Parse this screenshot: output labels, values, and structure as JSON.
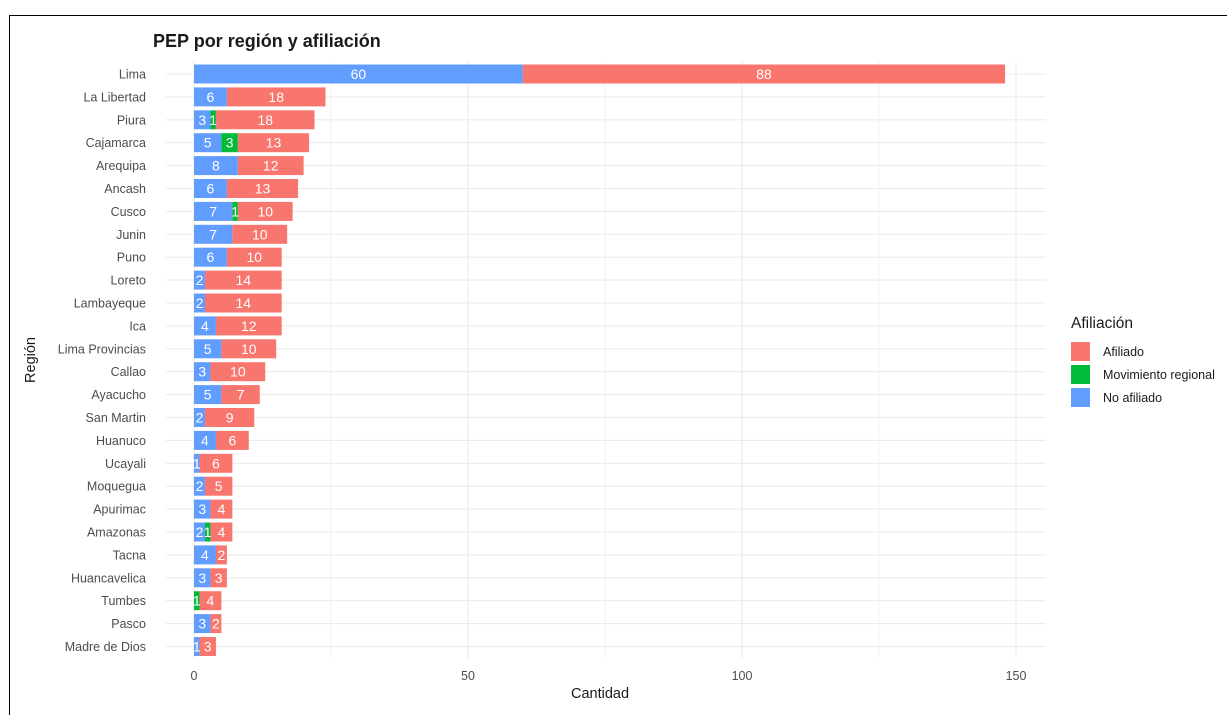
{
  "chart_data": {
    "type": "bar",
    "orientation": "horizontal",
    "stacked": true,
    "title": "PEP por región y afiliación",
    "xlabel": "Cantidad",
    "ylabel": "Región",
    "xlim": [
      0,
      155
    ],
    "xticks": [
      0,
      50,
      100,
      150
    ],
    "grid": true,
    "legend_position": "right",
    "legend_title": "Afiliación",
    "legend": [
      {
        "name": "Afiliado",
        "color": "#F8766D"
      },
      {
        "name": "Movimiento regional",
        "color": "#00BA38"
      },
      {
        "name": "No afiliado",
        "color": "#619CFF"
      }
    ],
    "categories": [
      "Lima",
      "La Libertad",
      "Piura",
      "Cajamarca",
      "Arequipa",
      "Ancash",
      "Cusco",
      "Junin",
      "Puno",
      "Loreto",
      "Lambayeque",
      "Ica",
      "Lima Provincias",
      "Callao",
      "Ayacucho",
      "San Martin",
      "Huanuco",
      "Ucayali",
      "Moquegua",
      "Apurimac",
      "Amazonas",
      "Tacna",
      "Huancavelica",
      "Tumbes",
      "Pasco",
      "Madre de Dios"
    ],
    "series": [
      {
        "name": "No afiliado",
        "color": "#619CFF",
        "values": [
          60,
          6,
          3,
          5,
          8,
          6,
          7,
          7,
          6,
          2,
          2,
          4,
          5,
          3,
          5,
          2,
          4,
          1,
          2,
          3,
          2,
          4,
          3,
          0,
          3,
          1
        ]
      },
      {
        "name": "Movimiento regional",
        "color": "#00BA38",
        "values": [
          0,
          0,
          1,
          3,
          0,
          0,
          1,
          0,
          0,
          0,
          0,
          0,
          0,
          0,
          0,
          0,
          0,
          0,
          0,
          0,
          1,
          0,
          0,
          1,
          0,
          0
        ]
      },
      {
        "name": "Afiliado",
        "color": "#F8766D",
        "values": [
          88,
          18,
          18,
          13,
          12,
          13,
          10,
          10,
          10,
          14,
          14,
          12,
          10,
          10,
          7,
          9,
          6,
          6,
          5,
          4,
          4,
          2,
          3,
          4,
          2,
          3
        ]
      }
    ]
  }
}
